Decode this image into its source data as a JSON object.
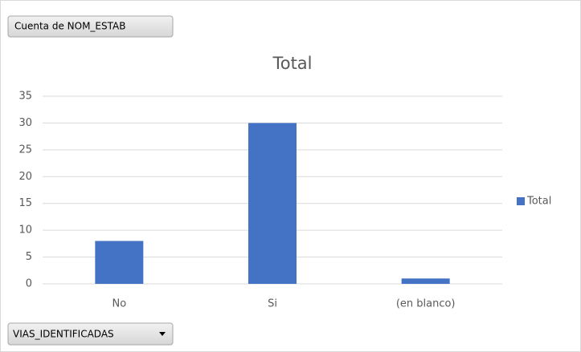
{
  "chart_data": {
    "type": "bar",
    "title": "Total",
    "value_field_button": "Cuenta de NOM_ESTAB",
    "axis_field_button": "VIAS_IDENTIFICADAS",
    "categories": [
      "No",
      "Si",
      "(en blanco)"
    ],
    "series": [
      {
        "name": "Total",
        "color": "#4472c4",
        "values": [
          8,
          30,
          1
        ]
      }
    ],
    "ylim": [
      0,
      35
    ],
    "yticks": [
      0,
      5,
      10,
      15,
      20,
      25,
      30,
      35
    ],
    "grid": true,
    "legend": "right"
  }
}
